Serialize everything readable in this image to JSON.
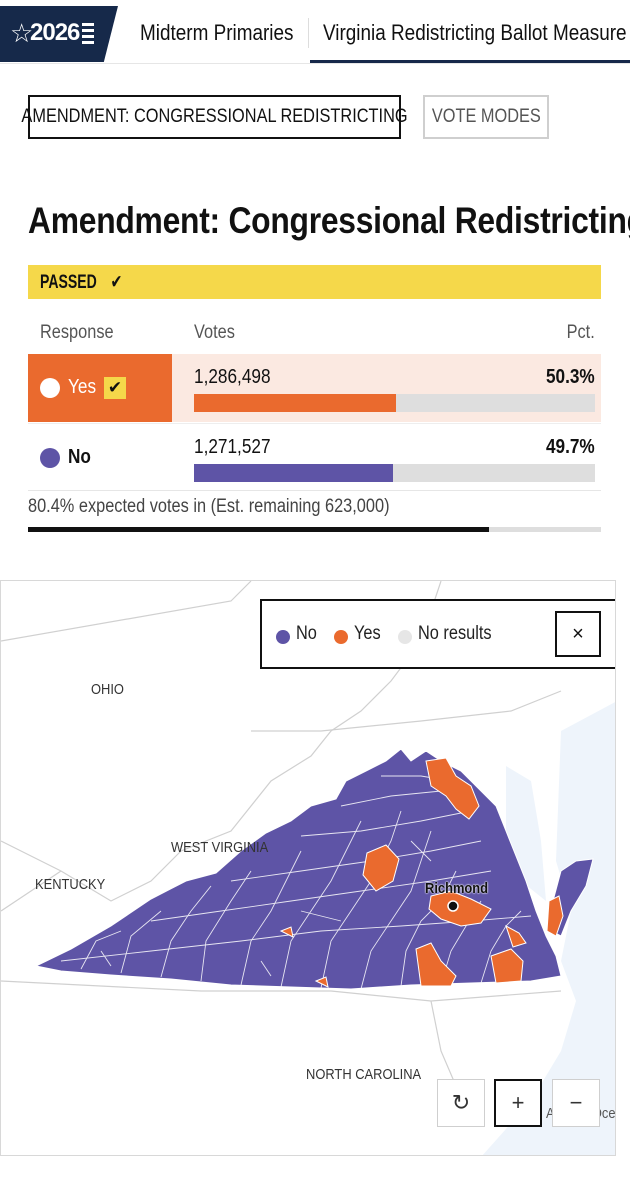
{
  "nav": {
    "logo_year": "2026",
    "tabs": [
      {
        "label": "Midterm Primaries"
      },
      {
        "label": "Virginia Redistricting Ballot Measure"
      }
    ]
  },
  "buttons": {
    "amendment": "AMENDMENT: CONGRESSIONAL REDISTRICTING",
    "vote_modes": "VOTE MODES"
  },
  "race": {
    "title": "Amendment: Congressional Redistricting",
    "status": "PASSED",
    "headers": {
      "response": "Response",
      "votes": "Votes",
      "pct": "Pct."
    },
    "results": [
      {
        "response": "Yes",
        "votes": "1,286,498",
        "pct": "50.3%",
        "share": 0.503,
        "winner": true,
        "color": "#ea6a2e"
      },
      {
        "response": "No",
        "votes": "1,271,527",
        "pct": "49.7%",
        "share": 0.497,
        "winner": false,
        "color": "#5e54a6"
      }
    ],
    "expected_text": "80.4% expected votes in (Est. remaining 623,000)",
    "expected_share": 0.804
  },
  "map": {
    "legend": {
      "no": "No",
      "yes": "Yes",
      "no_results": "No results",
      "close": "×"
    },
    "colors": {
      "no": "#5e54a6",
      "yes": "#ea6a2e",
      "no_results": "#e6e6e6"
    },
    "state_labels": {
      "ohio": "OHIO",
      "west_virginia": "WEST VIRGINIA",
      "kentucky": "KENTUCKY",
      "north_carolina": "NORTH CAROLINA"
    },
    "city": "Richmond",
    "ocean_label": "Atlantic Ocean",
    "controls": {
      "reset": "↻",
      "zoom_in": "+",
      "zoom_out": "−"
    }
  }
}
